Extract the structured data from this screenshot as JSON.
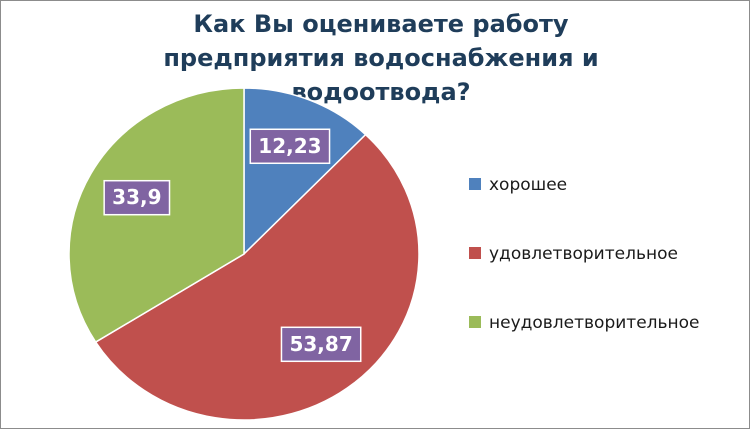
{
  "chart_data": {
    "type": "pie",
    "title": "Как Вы оцениваете работу предприятия водоснабжения и водоотвода?",
    "categories": [
      "хорошее",
      "удовлетворительное",
      "неудовлетворительное"
    ],
    "values": [
      12.23,
      53.87,
      33.9
    ],
    "value_labels": [
      "12,23",
      "53,87",
      "33,9"
    ],
    "colors": [
      "#4f81bd",
      "#c0504d",
      "#9bbb59"
    ],
    "label_color": "#8064a2",
    "legend": "right"
  }
}
